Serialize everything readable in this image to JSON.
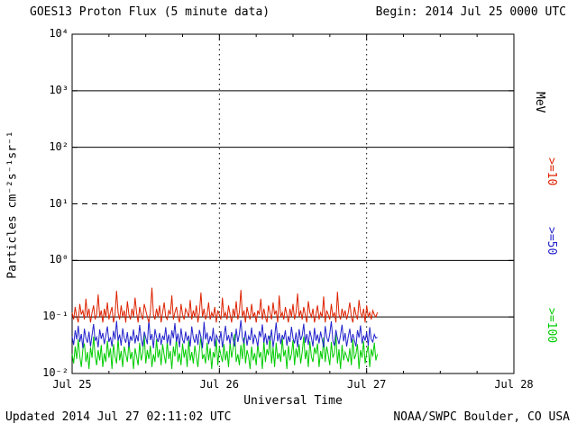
{
  "header": {
    "title": "GOES13 Proton Flux (5 minute data)",
    "begin": "Begin: 2014 Jul 25 0000 UTC"
  },
  "footer": {
    "updated": "Updated 2014 Jul 27 02:11:02 UTC",
    "credit": "NOAA/SWPC Boulder, CO USA"
  },
  "axes": {
    "ylabel": "Particles cm⁻²s⁻¹sr⁻¹",
    "xlabel": "Universal Time"
  },
  "right_labels": [
    {
      "text": "MeV",
      "color": "#000000"
    },
    {
      "text": ">=10",
      "color": "#dd2200"
    },
    {
      "text": ">=50",
      "color": "#2222cc"
    },
    {
      "text": ">=100",
      "color": "#00cc00"
    }
  ],
  "chart_data": {
    "type": "line",
    "title": "GOES13 Proton Flux (5 minute data)",
    "xlabel": "Universal Time",
    "ylabel": "Particles cm⁻²s⁻¹sr⁻¹",
    "y_scale": "log",
    "ylim": [
      0.01,
      10000
    ],
    "x_range_hours": [
      0,
      72
    ],
    "x_ticks": [
      {
        "label": "Jul 25",
        "hours": 0
      },
      {
        "label": "Jul 26",
        "hours": 24
      },
      {
        "label": "Jul 27",
        "hours": 48
      },
      {
        "label": "Jul 28",
        "hours": 72
      }
    ],
    "x_minor_tick_hours": [
      6,
      12,
      18,
      30,
      36,
      42,
      54,
      60,
      66
    ],
    "y_ticks": [
      {
        "label": "10⁴",
        "value": 10000
      },
      {
        "label": "10³",
        "value": 1000
      },
      {
        "label": "10²",
        "value": 100
      },
      {
        "label": "10¹",
        "value": 10
      },
      {
        "label": "10⁰",
        "value": 1
      },
      {
        "label": "10⁻¹",
        "value": 0.1
      },
      {
        "label": "10⁻²",
        "value": 0.01
      }
    ],
    "hlines": [
      {
        "value": 1000,
        "style": "solid"
      },
      {
        "value": 100,
        "style": "solid"
      },
      {
        "value": 10,
        "style": "dashed"
      },
      {
        "value": 1,
        "style": "solid"
      },
      {
        "value": 0.1,
        "style": "solid"
      }
    ],
    "vlines_dotted_hours": [
      24,
      48
    ],
    "legend_position": "right",
    "grid": "decade-lines",
    "background": "#ffffff",
    "t0_hours": 0,
    "dt_hours": 0.25,
    "series": [
      {
        "name": ">=100 MeV",
        "color": "#00cc00",
        "values": [
          0.022,
          0.015,
          0.03,
          0.018,
          0.04,
          0.02,
          0.013,
          0.027,
          0.034,
          0.016,
          0.024,
          0.012,
          0.029,
          0.019,
          0.045,
          0.021,
          0.014,
          0.026,
          0.017,
          0.032,
          0.013,
          0.023,
          0.016,
          0.038,
          0.019,
          0.028,
          0.012,
          0.033,
          0.02,
          0.015,
          0.042,
          0.017,
          0.025,
          0.013,
          0.03,
          0.022,
          0.016,
          0.036,
          0.018,
          0.024,
          0.012,
          0.028,
          0.02,
          0.014,
          0.035,
          0.017,
          0.023,
          0.048,
          0.015,
          0.026,
          0.018,
          0.031,
          0.013,
          0.022,
          0.016,
          0.04,
          0.019,
          0.027,
          0.014,
          0.033,
          0.021,
          0.015,
          0.037,
          0.018,
          0.025,
          0.012,
          0.03,
          0.02,
          0.044,
          0.016,
          0.023,
          0.014,
          0.034,
          0.019,
          0.027,
          0.013,
          0.039,
          0.017,
          0.024,
          0.015,
          0.031,
          0.02,
          0.013,
          0.026,
          0.046,
          0.018,
          0.022,
          0.015,
          0.035,
          0.017,
          0.028,
          0.012,
          0.024,
          0.019,
          0.041,
          0.014,
          0.029,
          0.021,
          0.016,
          0.033,
          0.017,
          0.025,
          0.013,
          0.036,
          0.019,
          0.028,
          0.05,
          0.016,
          0.022,
          0.014,
          0.032,
          0.018,
          0.043,
          0.015,
          0.026,
          0.02,
          0.012,
          0.03,
          0.017,
          0.023,
          0.014,
          0.034,
          0.019,
          0.024,
          0.012,
          0.038,
          0.016,
          0.027,
          0.021,
          0.047,
          0.015,
          0.029,
          0.013,
          0.035,
          0.018,
          0.023,
          0.016,
          0.042,
          0.02,
          0.026,
          0.012,
          0.031,
          0.017,
          0.022,
          0.039,
          0.014,
          0.028,
          0.019,
          0.033,
          0.015,
          0.024,
          0.045,
          0.018,
          0.026,
          0.013,
          0.037,
          0.02,
          0.016,
          0.029,
          0.022,
          0.034,
          0.013,
          0.025,
          0.018,
          0.043,
          0.016,
          0.03,
          0.021,
          0.014,
          0.036,
          0.019,
          0.023,
          0.049,
          0.015,
          0.027,
          0.012,
          0.032,
          0.017,
          0.024,
          0.02,
          0.016,
          0.028,
          0.014,
          0.04,
          0.018,
          0.022,
          0.033,
          0.012,
          0.026,
          0.019,
          0.037,
          0.015,
          0.023,
          0.031,
          0.013,
          0.027,
          0.02,
          0.035,
          0.017,
          0.022
        ]
      },
      {
        "name": ">=50 MeV",
        "color": "#2222cc",
        "values": [
          0.045,
          0.032,
          0.058,
          0.04,
          0.07,
          0.036,
          0.05,
          0.028,
          0.062,
          0.042,
          0.035,
          0.055,
          0.03,
          0.048,
          0.075,
          0.038,
          0.044,
          0.029,
          0.06,
          0.041,
          0.052,
          0.033,
          0.047,
          0.068,
          0.036,
          0.044,
          0.03,
          0.057,
          0.04,
          0.085,
          0.038,
          0.049,
          0.031,
          0.063,
          0.042,
          0.035,
          0.054,
          0.029,
          0.046,
          0.038,
          0.06,
          0.034,
          0.048,
          0.037,
          0.072,
          0.041,
          0.03,
          0.055,
          0.043,
          0.033,
          0.09,
          0.039,
          0.05,
          0.028,
          0.061,
          0.044,
          0.036,
          0.052,
          0.032,
          0.047,
          0.039,
          0.066,
          0.034,
          0.049,
          0.031,
          0.058,
          0.042,
          0.078,
          0.036,
          0.051,
          0.029,
          0.063,
          0.04,
          0.034,
          0.055,
          0.038,
          0.047,
          0.03,
          0.068,
          0.043,
          0.035,
          0.05,
          0.032,
          0.059,
          0.044,
          0.028,
          0.082,
          0.04,
          0.053,
          0.033,
          0.046,
          0.037,
          0.064,
          0.03,
          0.048,
          0.041,
          0.035,
          0.056,
          0.029,
          0.045,
          0.07,
          0.038,
          0.048,
          0.033,
          0.054,
          0.04,
          0.03,
          0.062,
          0.036,
          0.05,
          0.088,
          0.042,
          0.034,
          0.057,
          0.031,
          0.046,
          0.039,
          0.065,
          0.033,
          0.049,
          0.041,
          0.03,
          0.056,
          0.044,
          0.074,
          0.035,
          0.051,
          0.032,
          0.047,
          0.038,
          0.06,
          0.029,
          0.045,
          0.08,
          0.037,
          0.052,
          0.033,
          0.048,
          0.04,
          0.058,
          0.031,
          0.046,
          0.036,
          0.067,
          0.042,
          0.034,
          0.053,
          0.029,
          0.061,
          0.039,
          0.047,
          0.076,
          0.035,
          0.05,
          0.032,
          0.057,
          0.043,
          0.03,
          0.064,
          0.038,
          0.049,
          0.034,
          0.055,
          0.04,
          0.029,
          0.069,
          0.044,
          0.036,
          0.051,
          0.084,
          0.038,
          0.031,
          0.059,
          0.042,
          0.033,
          0.048,
          0.073,
          0.037,
          0.052,
          0.03,
          0.045,
          0.062,
          0.035,
          0.05,
          0.039,
          0.03,
          0.058,
          0.043,
          0.071,
          0.034,
          0.047,
          0.038,
          0.054,
          0.031,
          0.066,
          0.04,
          0.036,
          0.049,
          0.042,
          0.044
        ]
      },
      {
        "name": ">=10 MeV",
        "color": "#dd2200",
        "values": [
          0.12,
          0.09,
          0.15,
          0.1,
          0.08,
          0.17,
          0.11,
          0.13,
          0.09,
          0.21,
          0.1,
          0.14,
          0.08,
          0.12,
          0.16,
          0.09,
          0.11,
          0.25,
          0.1,
          0.13,
          0.08,
          0.14,
          0.1,
          0.18,
          0.09,
          0.12,
          0.15,
          0.08,
          0.11,
          0.29,
          0.12,
          0.09,
          0.16,
          0.1,
          0.13,
          0.08,
          0.19,
          0.11,
          0.09,
          0.14,
          0.1,
          0.22,
          0.12,
          0.08,
          0.15,
          0.11,
          0.09,
          0.17,
          0.13,
          0.1,
          0.08,
          0.12,
          0.33,
          0.11,
          0.09,
          0.14,
          0.1,
          0.16,
          0.08,
          0.12,
          0.18,
          0.1,
          0.09,
          0.13,
          0.11,
          0.24,
          0.09,
          0.12,
          0.15,
          0.1,
          0.08,
          0.17,
          0.11,
          0.09,
          0.14,
          0.12,
          0.1,
          0.2,
          0.09,
          0.13,
          0.1,
          0.16,
          0.08,
          0.12,
          0.27,
          0.1,
          0.14,
          0.09,
          0.11,
          0.18,
          0.09,
          0.12,
          0.1,
          0.15,
          0.08,
          0.13,
          0.11,
          0.09,
          0.22,
          0.1,
          0.12,
          0.09,
          0.16,
          0.11,
          0.08,
          0.14,
          0.1,
          0.19,
          0.09,
          0.12,
          0.3,
          0.1,
          0.13,
          0.08,
          0.15,
          0.11,
          0.09,
          0.17,
          0.1,
          0.12,
          0.08,
          0.13,
          0.11,
          0.21,
          0.09,
          0.14,
          0.1,
          0.08,
          0.16,
          0.12,
          0.09,
          0.18,
          0.11,
          0.13,
          0.08,
          0.24,
          0.1,
          0.12,
          0.09,
          0.15,
          0.11,
          0.08,
          0.14,
          0.1,
          0.17,
          0.09,
          0.12,
          0.26,
          0.1,
          0.13,
          0.09,
          0.15,
          0.11,
          0.08,
          0.19,
          0.12,
          0.1,
          0.14,
          0.08,
          0.11,
          0.16,
          0.09,
          0.12,
          0.1,
          0.23,
          0.08,
          0.13,
          0.11,
          0.09,
          0.17,
          0.1,
          0.12,
          0.08,
          0.28,
          0.11,
          0.09,
          0.14,
          0.1,
          0.13,
          0.09,
          0.12,
          0.18,
          0.1,
          0.08,
          0.15,
          0.11,
          0.09,
          0.2,
          0.12,
          0.1,
          0.14,
          0.08,
          0.16,
          0.1,
          0.12,
          0.09,
          0.13,
          0.11,
          0.1,
          0.12
        ]
      }
    ]
  }
}
